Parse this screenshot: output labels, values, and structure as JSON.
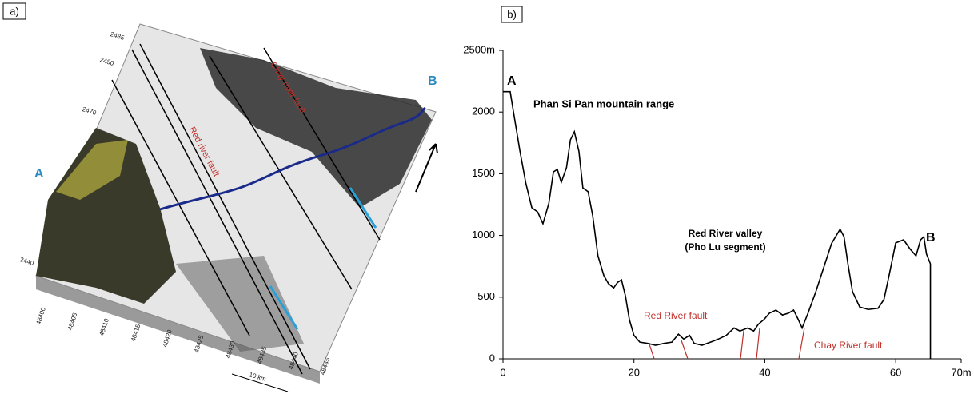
{
  "panel_a": {
    "label": "a)",
    "point_a": "A",
    "point_b": "B",
    "red_fault": "Red river fault",
    "chay_fault": "Chay river fault",
    "scale": "10 km",
    "y_labels": [
      "2485",
      "2480",
      "2470",
      "2440"
    ],
    "x_labels": [
      "48400",
      "48405",
      "48410",
      "48415",
      "48420",
      "48425",
      "48430",
      "48435",
      "48440",
      "48445"
    ]
  },
  "chart_data": {
    "type": "line",
    "panel_label": "b)",
    "x": [
      0,
      1.1,
      1.6,
      2.6,
      3.5,
      4.4,
      5.3,
      6.1,
      7,
      7.7,
      8.3,
      8.9,
      9.7,
      10.3,
      10.9,
      11.6,
      12.2,
      13,
      13.7,
      14.5,
      15.4,
      16.1,
      16.9,
      17.5,
      18.1,
      18.7,
      19.3,
      20,
      20.9,
      22.1,
      23.3,
      24.6,
      25.8,
      26.8,
      27.6,
      28.5,
      29.2,
      30.4,
      31.7,
      32.9,
      34.1,
      35.3,
      36.2,
      37.4,
      38.3,
      39,
      39.9,
      40.7,
      41.7,
      42.7,
      43.6,
      44.4,
      45.1,
      45.7,
      46.6,
      47.8,
      49,
      50.2,
      51.5,
      52.1,
      52.7,
      53.4,
      54.5,
      55.8,
      57.3,
      58.2,
      59.1,
      60,
      61.2,
      62.2,
      63.1,
      63.8,
      64.3,
      64.7,
      65.3,
      65.3
    ],
    "series": [
      {
        "color": "#000000",
        "values": [
          2165,
          2165,
          2000,
          1680,
          1420,
          1225,
          1190,
          1095,
          1260,
          1515,
          1535,
          1430,
          1550,
          1775,
          1840,
          1680,
          1385,
          1355,
          1160,
          835,
          675,
          610,
          575,
          620,
          640,
          510,
          318,
          190,
          135,
          125,
          110,
          125,
          135,
          200,
          160,
          190,
          125,
          110,
          135,
          160,
          190,
          250,
          225,
          250,
          225,
          280,
          320,
          370,
          395,
          355,
          370,
          395,
          320,
          250,
          370,
          545,
          740,
          935,
          1050,
          990,
          770,
          545,
          420,
          400,
          410,
          480,
          705,
          940,
          965,
          890,
          835,
          965,
          990,
          850,
          770,
          0
        ]
      }
    ],
    "xlim": [
      0,
      70
    ],
    "xticks": [
      0,
      20,
      40,
      60,
      {
        "value": 70,
        "label": "70m"
      }
    ],
    "ylim": [
      0,
      2500
    ],
    "yticks": [
      0,
      500,
      1000,
      1500,
      2000,
      {
        "value": 2500,
        "label": "2500m"
      }
    ],
    "annotations": {
      "a": "A",
      "b": "B",
      "range": "Phan Si Pan mountain range",
      "valley": "Red River valley",
      "segment": "(Pho Lu segment)",
      "red_fault": "Red River fault",
      "chay_fault": "Chay River fault"
    }
  }
}
